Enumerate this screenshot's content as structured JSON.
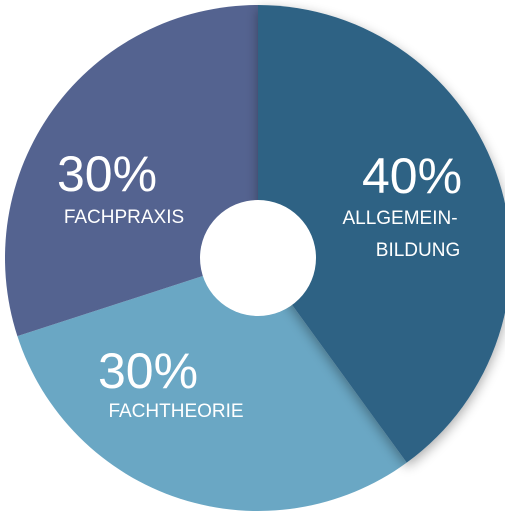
{
  "chart_data": {
    "type": "pie",
    "variant": "donut",
    "slices": [
      {
        "value": 40,
        "percent_label": "40%",
        "label_lines": [
          "ALLGEMEIN-",
          "BILDUNG"
        ],
        "color": "#2e6284"
      },
      {
        "value": 30,
        "percent_label": "30%",
        "label_lines": [
          "FACHTHEORIE"
        ],
        "color": "#6aa7c4"
      },
      {
        "value": 30,
        "percent_label": "30%",
        "label_lines": [
          "FACHPRAXIS"
        ],
        "color": "#546390"
      }
    ],
    "hole_color": "#ffffff"
  }
}
